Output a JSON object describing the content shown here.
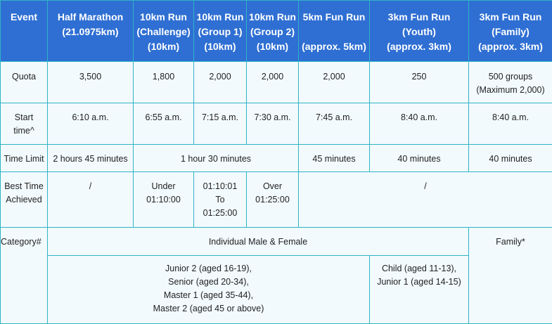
{
  "headers": [
    {
      "line1": "Event",
      "line2": "",
      "line3": ""
    },
    {
      "line1": "Half Marathon",
      "line2": "(21.0975km)",
      "line3": ""
    },
    {
      "line1": "10km Run",
      "line2": "(Challenge)",
      "line3": "(10km)"
    },
    {
      "line1": "10km Run",
      "line2": "(Group 1)",
      "line3": "(10km)"
    },
    {
      "line1": "10km Run",
      "line2": "(Group 2)",
      "line3": "(10km)"
    },
    {
      "line1": "5km Fun Run",
      "line2": "",
      "line3": "(approx. 5km)"
    },
    {
      "line1": "3km Fun Run",
      "line2": "(Youth)",
      "line3": "(approx. 3km)"
    },
    {
      "line1": "3km Fun Run",
      "line2": "(Family)",
      "line3": "(approx. 3km)"
    }
  ],
  "quota": {
    "label": "Quota",
    "values": [
      "3,500",
      "1,800",
      "2,000",
      "2,000",
      "2,000",
      "250"
    ],
    "family_line1": "500 groups",
    "family_line2": "(Maximum 2,000)"
  },
  "start_time": {
    "label_line1": "Start",
    "label_line2": "time^",
    "values": [
      "6:10 a.m.",
      "6:55 a.m.",
      "7:15 a.m.",
      "7:30 a.m.",
      "7:45 a.m.",
      "8:40 a.m.",
      "8:40 a.m."
    ]
  },
  "time_limit": {
    "label": "Time Limit",
    "half": "2 hours 45 minutes",
    "ten_km": "1 hour 30 minutes",
    "five_km": "45 minutes",
    "youth": "40 minutes",
    "family": "40 minutes"
  },
  "best_time": {
    "label_line1": "Best Time",
    "label_line2": "Achieved",
    "half": "/",
    "challenge_line1": "Under",
    "challenge_line2": "01:10:00",
    "group1_line1": "01:10:01",
    "group1_line2": "To",
    "group1_line3": "01:25:00",
    "group2_line1": "Over",
    "group2_line2": "01:25:00",
    "rest": "/"
  },
  "category": {
    "label": "Category#",
    "individual": "Individual Male & Female",
    "family": "Family*",
    "adult_lines": [
      "Junior 2 (aged 16-19),",
      "Senior (aged 20-34),",
      "Master 1 (aged 35-44),",
      "Master 2 (aged 45 or above)"
    ],
    "youth_lines": [
      "Child (aged 11-13),",
      "Junior 1 (aged 14-15)"
    ]
  }
}
